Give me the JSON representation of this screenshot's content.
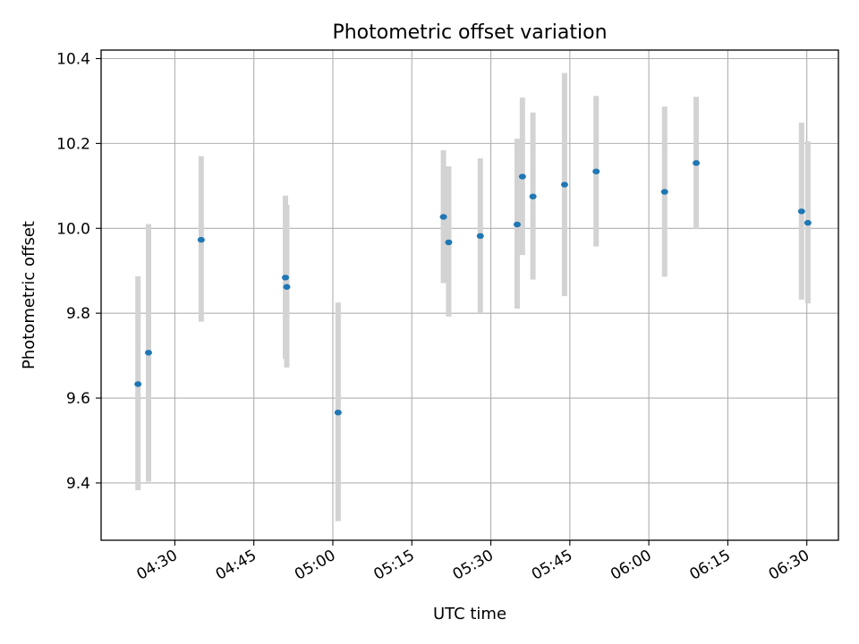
{
  "chart_data": {
    "type": "scatter",
    "title": "Photometric offset variation",
    "xlabel": "UTC time",
    "ylabel": "Photometric offset",
    "x_ticks": [
      "04:30",
      "04:45",
      "05:00",
      "05:15",
      "05:30",
      "05:45",
      "06:00",
      "06:15",
      "06:30"
    ],
    "y_ticks": [
      "9.4",
      "9.6",
      "9.8",
      "10.0",
      "10.2",
      "10.4"
    ],
    "xlim": [
      "04:16",
      "06:36"
    ],
    "ylim": [
      9.265,
      10.42
    ],
    "grid": true,
    "colors": {
      "point": "#1f77b4",
      "errorbar": "#d3d3d3",
      "grid": "#b0b0b0"
    },
    "points": [
      {
        "time": "04:23",
        "value": 9.633,
        "low": 9.383,
        "high": 9.887
      },
      {
        "time": "04:25",
        "value": 9.707,
        "low": 9.403,
        "high": 10.01
      },
      {
        "time": "04:35",
        "value": 9.973,
        "low": 9.78,
        "high": 10.17
      },
      {
        "time": "04:51",
        "value": 9.884,
        "low": 9.692,
        "high": 10.077
      },
      {
        "time": "04:51",
        "value": 9.862,
        "low": 9.672,
        "high": 10.055
      },
      {
        "time": "05:01",
        "value": 9.566,
        "low": 9.31,
        "high": 9.825
      },
      {
        "time": "05:21",
        "value": 10.027,
        "low": 9.871,
        "high": 10.184
      },
      {
        "time": "05:22",
        "value": 9.967,
        "low": 9.792,
        "high": 10.146
      },
      {
        "time": "05:28",
        "value": 9.982,
        "low": 9.802,
        "high": 10.165
      },
      {
        "time": "05:35",
        "value": 10.009,
        "low": 9.811,
        "high": 10.211
      },
      {
        "time": "05:36",
        "value": 10.122,
        "low": 9.937,
        "high": 10.308
      },
      {
        "time": "05:38",
        "value": 10.075,
        "low": 9.879,
        "high": 10.273
      },
      {
        "time": "05:44",
        "value": 10.103,
        "low": 9.84,
        "high": 10.366
      },
      {
        "time": "05:50",
        "value": 10.134,
        "low": 9.957,
        "high": 10.312
      },
      {
        "time": "06:03",
        "value": 10.086,
        "low": 9.886,
        "high": 10.287
      },
      {
        "time": "06:09",
        "value": 10.154,
        "low": 9.998,
        "high": 10.31
      },
      {
        "time": "06:29",
        "value": 10.04,
        "low": 9.832,
        "high": 10.249
      },
      {
        "time": "06:30",
        "value": 10.013,
        "low": 9.823,
        "high": 10.205
      }
    ]
  }
}
